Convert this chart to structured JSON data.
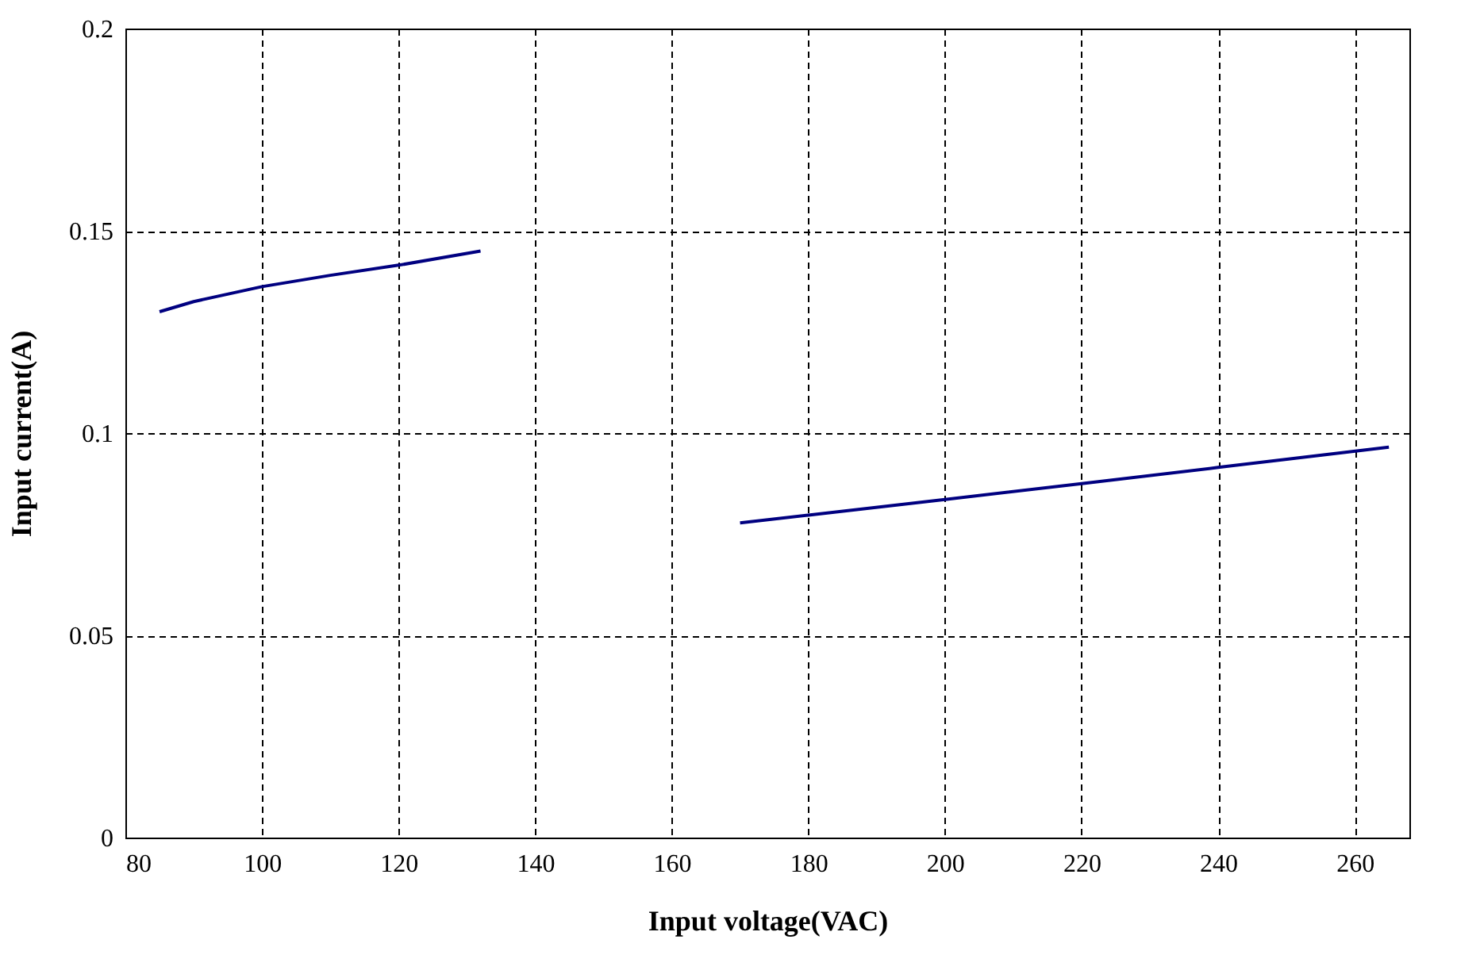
{
  "chart_data": {
    "type": "line",
    "xlabel": "Input voltage(VAC)",
    "ylabel": "Input current(A)",
    "series": [
      {
        "color": "#000080",
        "x": [
          85,
          90,
          100,
          110,
          120,
          132
        ],
        "values": [
          0.13,
          0.1325,
          0.1362,
          0.139,
          0.1415,
          0.145
        ]
      },
      {
        "color": "#000080",
        "x": [
          170,
          180,
          200,
          220,
          240,
          265
        ],
        "values": [
          0.0778,
          0.0797,
          0.0836,
          0.0875,
          0.0915,
          0.0965
        ]
      }
    ],
    "xlim": [
      80,
      268
    ],
    "xticks": [
      80,
      100,
      120,
      140,
      160,
      180,
      200,
      220,
      240,
      260
    ],
    "ylim": [
      0,
      0.2
    ],
    "yticks": [
      0,
      {
        "value": 0.05,
        "label": "0.05"
      },
      {
        "value": 0.1,
        "label": "0.1"
      },
      {
        "value": 0.15,
        "label": "0.15"
      },
      {
        "value": 0.2,
        "label": "0.2"
      }
    ],
    "grid": true,
    "marker": "none",
    "line_style": "solid"
  }
}
